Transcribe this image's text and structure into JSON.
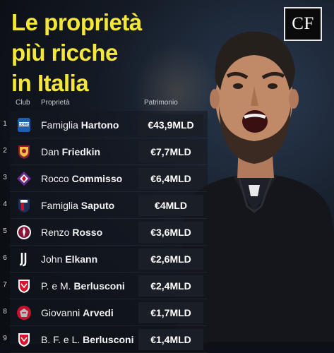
{
  "title": {
    "line1": "Le proprietà",
    "line2": "più ricche",
    "line3": "in Italia"
  },
  "logo_text": "CF",
  "headers": {
    "club": "Club",
    "owner": "Proprietà",
    "wealth": "Patrimonio"
  },
  "accent_color": "#f5e63a",
  "rows": [
    {
      "rank": "1",
      "club_icon": "como-badge-icon",
      "first": "Famiglia",
      "last": "Hartono",
      "value": "€43,9MLD"
    },
    {
      "rank": "2",
      "club_icon": "roma-badge-icon",
      "first": "Dan",
      "last": "Friedkin",
      "value": "€7,7MLD"
    },
    {
      "rank": "3",
      "club_icon": "fiorentina-badge-icon",
      "first": "Rocco",
      "last": "Commisso",
      "value": "€6,4MLD"
    },
    {
      "rank": "4",
      "club_icon": "bologna-badge-icon",
      "first": "Famiglia",
      "last": "Saputo",
      "value": "€4MLD"
    },
    {
      "rank": "5",
      "club_icon": "torino-badge-icon",
      "first": "Renzo",
      "last": "Rosso",
      "value": "€3,6MLD"
    },
    {
      "rank": "6",
      "club_icon": "juventus-badge-icon",
      "first": "John",
      "last": "Elkann",
      "value": "€2,6MLD"
    },
    {
      "rank": "7",
      "club_icon": "monza-badge-icon",
      "first": "P. e M.",
      "last": "Berlusconi",
      "value": "€2,4MLD"
    },
    {
      "rank": "8",
      "club_icon": "cremonese-badge-icon",
      "first": "Giovanni",
      "last": "Arvedi",
      "value": "€1,7MLD"
    },
    {
      "rank": "9",
      "club_icon": "monza-badge-icon",
      "first": "B. F. e L.",
      "last": "Berlusconi",
      "value": "€1,4MLD"
    }
  ]
}
